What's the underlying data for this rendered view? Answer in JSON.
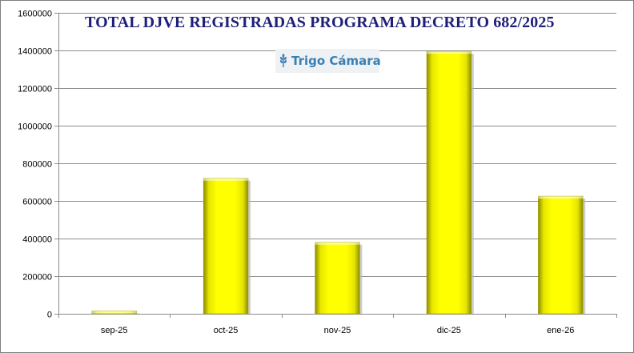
{
  "chart_data": {
    "type": "bar",
    "title": "TOTAL DJVE REGISTRADAS PROGRAMA DECRETO 682/2025",
    "categories": [
      "sep-25",
      "oct-25",
      "nov-25",
      "dic-25",
      "ene-26"
    ],
    "values": [
      15000,
      720000,
      380000,
      1395000,
      625000
    ],
    "ylim": [
      0,
      1600000
    ],
    "yticks": [
      0,
      200000,
      400000,
      600000,
      800000,
      1000000,
      1200000,
      1400000,
      1600000
    ],
    "ytick_labels": [
      "0",
      "200000",
      "400000",
      "600000",
      "800000",
      "1000000",
      "1200000",
      "1400000",
      "1600000"
    ],
    "grid": true,
    "xlabel": "",
    "ylabel": "",
    "bar_color": "#ffff00"
  },
  "watermark": {
    "text": "Trigo Cámara",
    "icon": "wheat-icon"
  }
}
